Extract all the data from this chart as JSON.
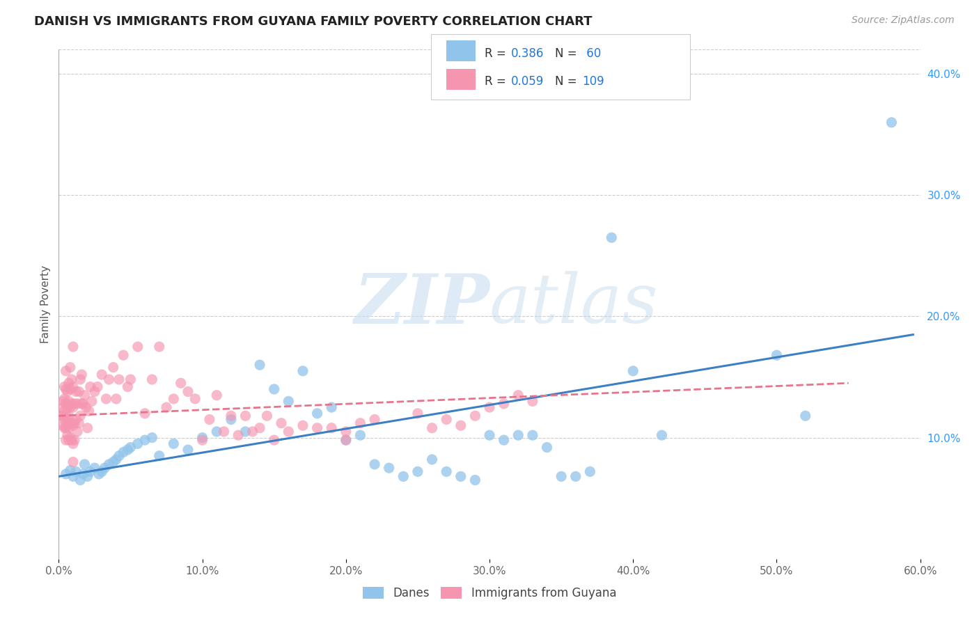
{
  "title": "DANISH VS IMMIGRANTS FROM GUYANA FAMILY POVERTY CORRELATION CHART",
  "source": "Source: ZipAtlas.com",
  "ylabel": "Family Poverty",
  "xlim": [
    0.0,
    0.6
  ],
  "ylim": [
    0.0,
    0.42
  ],
  "xticks": [
    0.0,
    0.1,
    0.2,
    0.3,
    0.4,
    0.5,
    0.6
  ],
  "xtick_labels": [
    "0.0%",
    "10.0%",
    "20.0%",
    "30.0%",
    "40.0%",
    "50.0%",
    "60.0%"
  ],
  "yticks_right": [
    0.1,
    0.2,
    0.3,
    0.4
  ],
  "ytick_labels_right": [
    "10.0%",
    "20.0%",
    "30.0%",
    "40.0%"
  ],
  "danes_color": "#90c4ea",
  "immigrants_color": "#f595b0",
  "danes_line_color": "#3d7fc4",
  "immigrants_line_color": "#e8738a",
  "watermark_zip": "ZIP",
  "watermark_atlas": "atlas",
  "background_color": "#ffffff",
  "danes_scatter_x": [
    0.005,
    0.008,
    0.01,
    0.012,
    0.015,
    0.017,
    0.018,
    0.02,
    0.022,
    0.025,
    0.028,
    0.03,
    0.032,
    0.035,
    0.038,
    0.04,
    0.042,
    0.045,
    0.048,
    0.05,
    0.055,
    0.06,
    0.065,
    0.07,
    0.08,
    0.09,
    0.1,
    0.11,
    0.12,
    0.13,
    0.14,
    0.15,
    0.16,
    0.17,
    0.18,
    0.19,
    0.2,
    0.21,
    0.22,
    0.23,
    0.24,
    0.25,
    0.26,
    0.27,
    0.28,
    0.29,
    0.3,
    0.31,
    0.32,
    0.33,
    0.34,
    0.35,
    0.36,
    0.37,
    0.385,
    0.4,
    0.42,
    0.5,
    0.52,
    0.58
  ],
  "danes_scatter_y": [
    0.07,
    0.073,
    0.068,
    0.072,
    0.065,
    0.07,
    0.078,
    0.068,
    0.072,
    0.075,
    0.07,
    0.072,
    0.075,
    0.078,
    0.08,
    0.082,
    0.085,
    0.088,
    0.09,
    0.092,
    0.095,
    0.098,
    0.1,
    0.085,
    0.095,
    0.09,
    0.1,
    0.105,
    0.115,
    0.105,
    0.16,
    0.14,
    0.13,
    0.155,
    0.12,
    0.125,
    0.098,
    0.102,
    0.078,
    0.075,
    0.068,
    0.072,
    0.082,
    0.072,
    0.068,
    0.065,
    0.102,
    0.098,
    0.102,
    0.102,
    0.092,
    0.068,
    0.068,
    0.072,
    0.265,
    0.155,
    0.102,
    0.168,
    0.118,
    0.36
  ],
  "immigrants_scatter_x": [
    0.002,
    0.002,
    0.003,
    0.003,
    0.003,
    0.004,
    0.004,
    0.004,
    0.004,
    0.004,
    0.005,
    0.005,
    0.005,
    0.005,
    0.005,
    0.005,
    0.006,
    0.006,
    0.006,
    0.006,
    0.007,
    0.007,
    0.007,
    0.007,
    0.007,
    0.008,
    0.008,
    0.008,
    0.008,
    0.008,
    0.009,
    0.009,
    0.009,
    0.009,
    0.01,
    0.01,
    0.01,
    0.01,
    0.01,
    0.01,
    0.011,
    0.011,
    0.011,
    0.012,
    0.012,
    0.013,
    0.013,
    0.014,
    0.014,
    0.015,
    0.015,
    0.016,
    0.016,
    0.017,
    0.018,
    0.019,
    0.02,
    0.021,
    0.022,
    0.023,
    0.025,
    0.027,
    0.03,
    0.033,
    0.035,
    0.038,
    0.04,
    0.042,
    0.045,
    0.048,
    0.05,
    0.055,
    0.06,
    0.065,
    0.07,
    0.075,
    0.08,
    0.085,
    0.09,
    0.095,
    0.1,
    0.105,
    0.11,
    0.115,
    0.12,
    0.125,
    0.13,
    0.135,
    0.14,
    0.145,
    0.15,
    0.155,
    0.16,
    0.17,
    0.18,
    0.19,
    0.2,
    0.21,
    0.22,
    0.25,
    0.26,
    0.27,
    0.28,
    0.29,
    0.3,
    0.31,
    0.32,
    0.33,
    0.2
  ],
  "immigrants_scatter_y": [
    0.118,
    0.125,
    0.11,
    0.118,
    0.13,
    0.108,
    0.115,
    0.122,
    0.132,
    0.142,
    0.098,
    0.108,
    0.118,
    0.128,
    0.14,
    0.155,
    0.102,
    0.112,
    0.125,
    0.138,
    0.098,
    0.108,
    0.118,
    0.13,
    0.145,
    0.1,
    0.112,
    0.125,
    0.14,
    0.158,
    0.098,
    0.112,
    0.128,
    0.148,
    0.08,
    0.095,
    0.11,
    0.125,
    0.142,
    0.175,
    0.098,
    0.112,
    0.128,
    0.115,
    0.138,
    0.105,
    0.128,
    0.112,
    0.138,
    0.118,
    0.148,
    0.128,
    0.152,
    0.128,
    0.135,
    0.125,
    0.108,
    0.122,
    0.142,
    0.13,
    0.138,
    0.142,
    0.152,
    0.132,
    0.148,
    0.158,
    0.132,
    0.148,
    0.168,
    0.142,
    0.148,
    0.175,
    0.12,
    0.148,
    0.175,
    0.125,
    0.132,
    0.145,
    0.138,
    0.132,
    0.098,
    0.115,
    0.135,
    0.105,
    0.118,
    0.102,
    0.118,
    0.105,
    0.108,
    0.118,
    0.098,
    0.112,
    0.105,
    0.11,
    0.108,
    0.108,
    0.105,
    0.112,
    0.115,
    0.12,
    0.108,
    0.115,
    0.11,
    0.118,
    0.125,
    0.128,
    0.135,
    0.13,
    0.098
  ],
  "danes_line": {
    "x0": 0.0,
    "x1": 0.595,
    "y0": 0.068,
    "y1": 0.185
  },
  "immigrants_line": {
    "x0": 0.0,
    "x1": 0.55,
    "y0": 0.118,
    "y1": 0.145
  },
  "legend_blue_text": "#2277dd",
  "legend_dark_text": "#333333",
  "title_fontsize": 13,
  "source_fontsize": 10,
  "tick_fontsize": 11,
  "ylabel_fontsize": 11
}
